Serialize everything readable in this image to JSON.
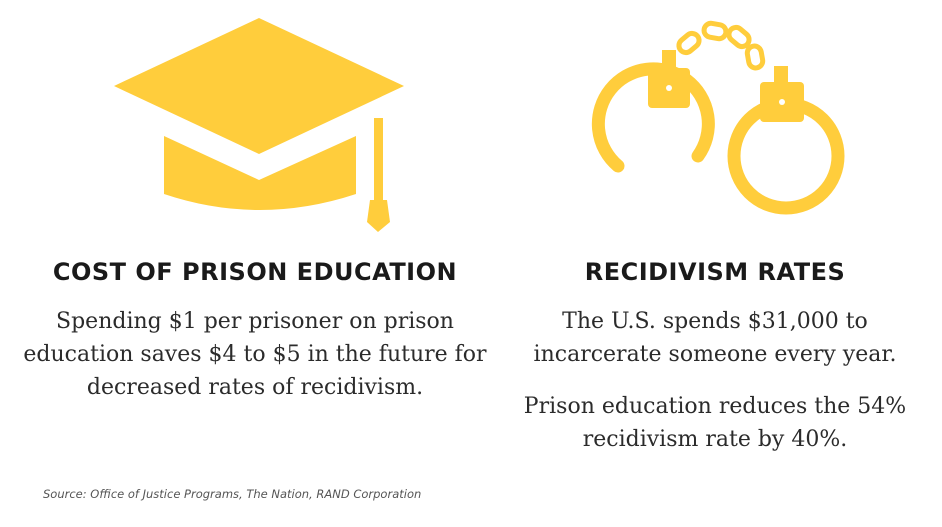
{
  "colors": {
    "accent": "#FFCD3C",
    "text": "#222222"
  },
  "icons": {
    "left": "graduation-cap-icon",
    "right": "handcuffs-icon"
  },
  "left_panel": {
    "heading": "COST OF PRISON EDUCATION",
    "text": "Spending $1 per prisoner on prison education saves $4 to $5 in the future for decreased rates of recidivism."
  },
  "right_panel": {
    "heading": "RECIDIVISM RATES",
    "text_1": "The U.S. spends $31,000 to incarcerate someone every year.",
    "text_2": "Prison education reduces the 54% recidivism rate by 40%."
  },
  "source": "Source: Office of Justice Programs, The Nation, RAND Corporation"
}
